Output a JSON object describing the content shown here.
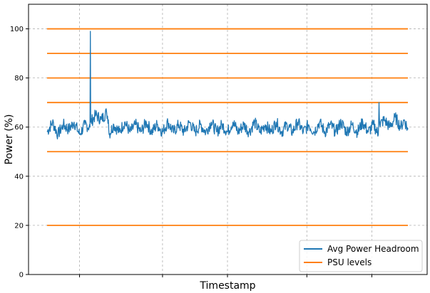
{
  "chart_data": {
    "type": "line",
    "title": "",
    "xlabel": "Timestamp",
    "ylabel": "Power (%)",
    "xlim": [
      0,
      100
    ],
    "ylim": [
      0,
      110
    ],
    "yticks": [
      0,
      20,
      40,
      60,
      80,
      100
    ],
    "grid": true,
    "legend_position": "bottom-right",
    "colors": {
      "headroom": "#1f77b4",
      "psu": "#ff7f0e",
      "grid": "#b0b0b0"
    },
    "series": [
      {
        "name": "Avg Power Headroom",
        "points": [
          {
            "x": 0.0,
            "y": 58
          },
          {
            "x": 1.5,
            "y": 62
          },
          {
            "x": 3.0,
            "y": 57
          },
          {
            "x": 4.5,
            "y": 61
          },
          {
            "x": 6.0,
            "y": 59
          },
          {
            "x": 7.5,
            "y": 62
          },
          {
            "x": 9.0,
            "y": 57
          },
          {
            "x": 10.5,
            "y": 61
          },
          {
            "x": 11.9,
            "y": 60
          },
          {
            "x": 12.0,
            "y": 99
          },
          {
            "x": 12.1,
            "y": 62
          },
          {
            "x": 13.5,
            "y": 65
          },
          {
            "x": 15.0,
            "y": 63
          },
          {
            "x": 16.5,
            "y": 66
          },
          {
            "x": 17.0,
            "y": 63
          },
          {
            "x": 17.2,
            "y": 57
          },
          {
            "x": 18.5,
            "y": 61
          },
          {
            "x": 20.0,
            "y": 58
          },
          {
            "x": 21.5,
            "y": 62
          },
          {
            "x": 23.0,
            "y": 58
          },
          {
            "x": 24.5,
            "y": 61
          },
          {
            "x": 26.0,
            "y": 58
          },
          {
            "x": 27.5,
            "y": 62
          },
          {
            "x": 29.0,
            "y": 58
          },
          {
            "x": 30.5,
            "y": 61
          },
          {
            "x": 32.0,
            "y": 58
          },
          {
            "x": 33.5,
            "y": 62
          },
          {
            "x": 35.0,
            "y": 58
          },
          {
            "x": 36.5,
            "y": 61
          },
          {
            "x": 38.0,
            "y": 58
          },
          {
            "x": 39.5,
            "y": 62
          },
          {
            "x": 41.0,
            "y": 58
          },
          {
            "x": 42.5,
            "y": 61
          },
          {
            "x": 44.0,
            "y": 58
          },
          {
            "x": 45.5,
            "y": 62
          },
          {
            "x": 47.0,
            "y": 58
          },
          {
            "x": 48.5,
            "y": 61
          },
          {
            "x": 50.0,
            "y": 58
          },
          {
            "x": 51.5,
            "y": 62
          },
          {
            "x": 53.0,
            "y": 58
          },
          {
            "x": 54.5,
            "y": 61
          },
          {
            "x": 56.0,
            "y": 58
          },
          {
            "x": 57.5,
            "y": 62
          },
          {
            "x": 59.0,
            "y": 58
          },
          {
            "x": 60.5,
            "y": 61
          },
          {
            "x": 62.0,
            "y": 58
          },
          {
            "x": 63.5,
            "y": 62
          },
          {
            "x": 65.0,
            "y": 58
          },
          {
            "x": 66.5,
            "y": 61
          },
          {
            "x": 68.0,
            "y": 58
          },
          {
            "x": 69.5,
            "y": 62
          },
          {
            "x": 71.0,
            "y": 58
          },
          {
            "x": 72.5,
            "y": 61
          },
          {
            "x": 74.0,
            "y": 58
          },
          {
            "x": 75.5,
            "y": 62
          },
          {
            "x": 77.0,
            "y": 58
          },
          {
            "x": 78.5,
            "y": 61
          },
          {
            "x": 80.0,
            "y": 58
          },
          {
            "x": 81.5,
            "y": 62
          },
          {
            "x": 83.0,
            "y": 58
          },
          {
            "x": 84.5,
            "y": 61
          },
          {
            "x": 86.0,
            "y": 58
          },
          {
            "x": 87.5,
            "y": 62
          },
          {
            "x": 89.0,
            "y": 58
          },
          {
            "x": 90.5,
            "y": 61
          },
          {
            "x": 91.8,
            "y": 57
          },
          {
            "x": 92.0,
            "y": 70
          },
          {
            "x": 92.2,
            "y": 61
          },
          {
            "x": 93.5,
            "y": 63
          },
          {
            "x": 95.0,
            "y": 60
          },
          {
            "x": 96.5,
            "y": 64
          },
          {
            "x": 98.0,
            "y": 60
          },
          {
            "x": 99.0,
            "y": 63
          },
          {
            "x": 100.0,
            "y": 59
          }
        ]
      },
      {
        "name": "PSU levels",
        "levels": [
          20,
          50,
          70,
          80,
          90,
          100
        ]
      }
    ]
  }
}
